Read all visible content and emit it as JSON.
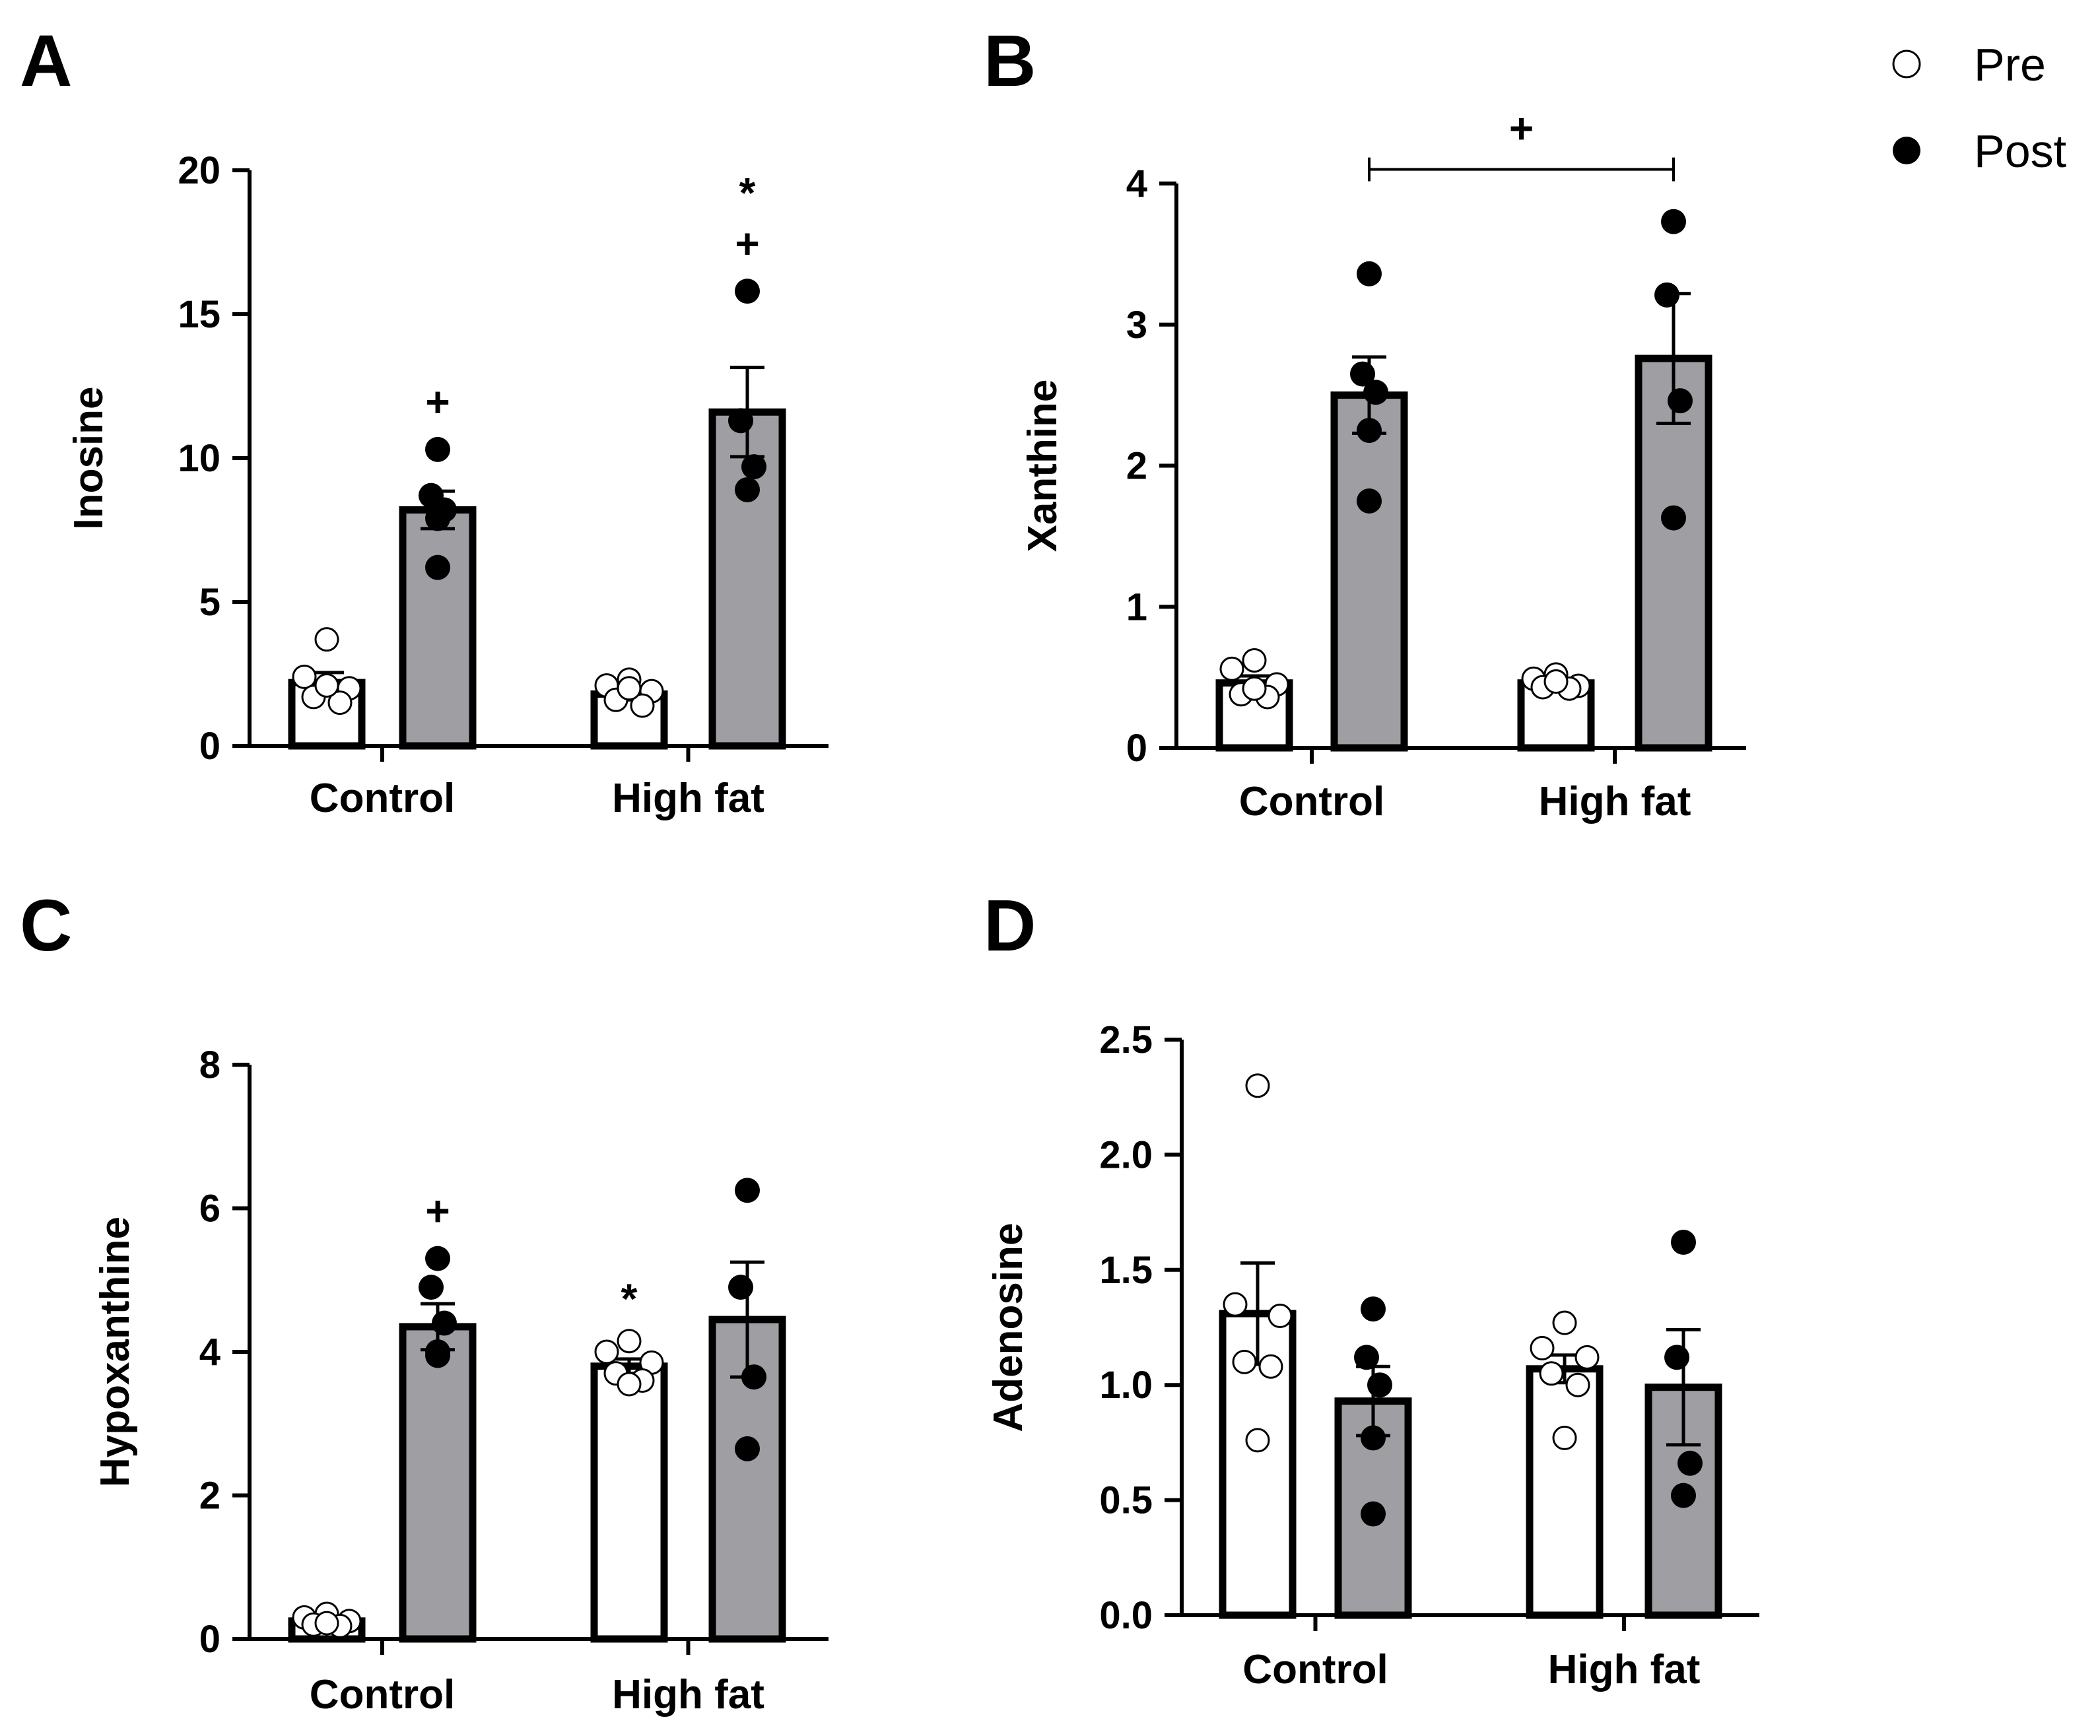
{
  "legend": {
    "items": [
      {
        "label": "Pre",
        "marker": "open-circle"
      },
      {
        "label": "Post",
        "marker": "filled-circle"
      }
    ]
  },
  "colors": {
    "pre_bar": "#ffffff",
    "post_bar": "#9e9ea3",
    "stroke": "#000000"
  },
  "chart_data": [
    {
      "panel": "A",
      "type": "bar",
      "ylabel": "Inosine",
      "ylim": [
        0,
        20
      ],
      "yticks": [
        0,
        5,
        10,
        15,
        20
      ],
      "ytick_labels": [
        "0",
        "5",
        "10",
        "15",
        "20"
      ],
      "categories": [
        "Control",
        "High fat"
      ],
      "series": [
        {
          "name": "Pre",
          "values": [
            2.2,
            1.8
          ],
          "sem": [
            0.35,
            0.2
          ],
          "points": [
            [
              3.7,
              2.4,
              2.0,
              1.7,
              1.5,
              2.1
            ],
            [
              2.3,
              2.1,
              1.9,
              1.6,
              1.4,
              2.0
            ]
          ]
        },
        {
          "name": "Post",
          "values": [
            8.2,
            11.6
          ],
          "sem": [
            0.65,
            1.55
          ],
          "points": [
            [
              10.3,
              8.7,
              8.2,
              7.9,
              6.2
            ],
            [
              15.8,
              11.3,
              9.7,
              8.9
            ]
          ]
        }
      ],
      "annotations": [
        {
          "series": "Post",
          "category": "Control",
          "symbols": [
            "+"
          ]
        },
        {
          "series": "Post",
          "category": "High fat",
          "symbols": [
            "+",
            "*"
          ]
        }
      ],
      "bracket": null
    },
    {
      "panel": "B",
      "type": "bar",
      "ylabel": "Xanthine",
      "ylim": [
        0,
        4
      ],
      "yticks": [
        0,
        1,
        2,
        3,
        4
      ],
      "ytick_labels": [
        "0",
        "1",
        "2",
        "3",
        "4"
      ],
      "categories": [
        "Control",
        "High fat"
      ],
      "series": [
        {
          "name": "Pre",
          "values": [
            0.46,
            0.46
          ],
          "sem": [
            0.05,
            0.02
          ],
          "points": [
            [
              0.62,
              0.56,
              0.45,
              0.38,
              0.36,
              0.42
            ],
            [
              0.52,
              0.49,
              0.44,
              0.43,
              0.42,
              0.47
            ]
          ]
        },
        {
          "name": "Post",
          "values": [
            2.5,
            2.76
          ],
          "sem": [
            0.27,
            0.46
          ],
          "points": [
            [
              3.36,
              2.65,
              2.52,
              2.25,
              1.75
            ],
            [
              3.73,
              3.21,
              2.46,
              1.63
            ]
          ]
        }
      ],
      "annotations": [],
      "bracket": {
        "label": "+",
        "from": "Control",
        "to": "High fat",
        "y": 4.1
      }
    },
    {
      "panel": "C",
      "type": "bar",
      "ylabel": "Hypoxanthine",
      "ylim": [
        0,
        8
      ],
      "yticks": [
        0,
        2,
        4,
        6,
        8
      ],
      "ytick_labels": [
        "0",
        "2",
        "4",
        "6",
        "8"
      ],
      "categories": [
        "Control",
        "High fat"
      ],
      "series": [
        {
          "name": "Pre",
          "values": [
            0.25,
            3.8
          ],
          "sem": [
            0.05,
            0.1
          ],
          "points": [
            [
              0.35,
              0.3,
              0.25,
              0.2,
              0.18,
              0.22
            ],
            [
              4.15,
              4.0,
              3.85,
              3.7,
              3.6,
              3.55
            ]
          ]
        },
        {
          "name": "Post",
          "values": [
            4.35,
            4.45
          ],
          "sem": [
            0.32,
            0.8
          ],
          "points": [
            [
              5.3,
              4.9,
              4.4,
              4.0,
              3.95
            ],
            [
              6.25,
              4.9,
              3.65,
              2.65
            ]
          ]
        }
      ],
      "annotations": [
        {
          "series": "Post",
          "category": "Control",
          "symbols": [
            "+"
          ]
        },
        {
          "series": "Pre",
          "category": "High fat",
          "symbols": [
            "*"
          ]
        }
      ],
      "bracket": null
    },
    {
      "panel": "D",
      "type": "bar",
      "ylabel": "Adenosine",
      "ylim": [
        0,
        2.5
      ],
      "yticks": [
        0,
        0.5,
        1.0,
        1.5,
        2.0,
        2.5
      ],
      "ytick_labels": [
        "0.0",
        "0.5",
        "1.0",
        "1.5",
        "2.0",
        "2.5"
      ],
      "categories": [
        "Control",
        "High fat"
      ],
      "series": [
        {
          "name": "Pre",
          "values": [
            1.31,
            1.07
          ],
          "sem": [
            0.22,
            0.06
          ],
          "points": [
            [
              2.3,
              1.35,
              1.3,
              1.1,
              1.08,
              0.76
            ],
            [
              1.27,
              1.16,
              1.12,
              1.05,
              1.0,
              0.77
            ]
          ]
        },
        {
          "name": "Post",
          "values": [
            0.93,
            0.99
          ],
          "sem": [
            0.15,
            0.25
          ],
          "points": [
            [
              1.33,
              1.12,
              1.0,
              0.77,
              0.44
            ],
            [
              1.62,
              1.12,
              0.66,
              0.52
            ]
          ]
        }
      ],
      "annotations": [],
      "bracket": null
    }
  ]
}
